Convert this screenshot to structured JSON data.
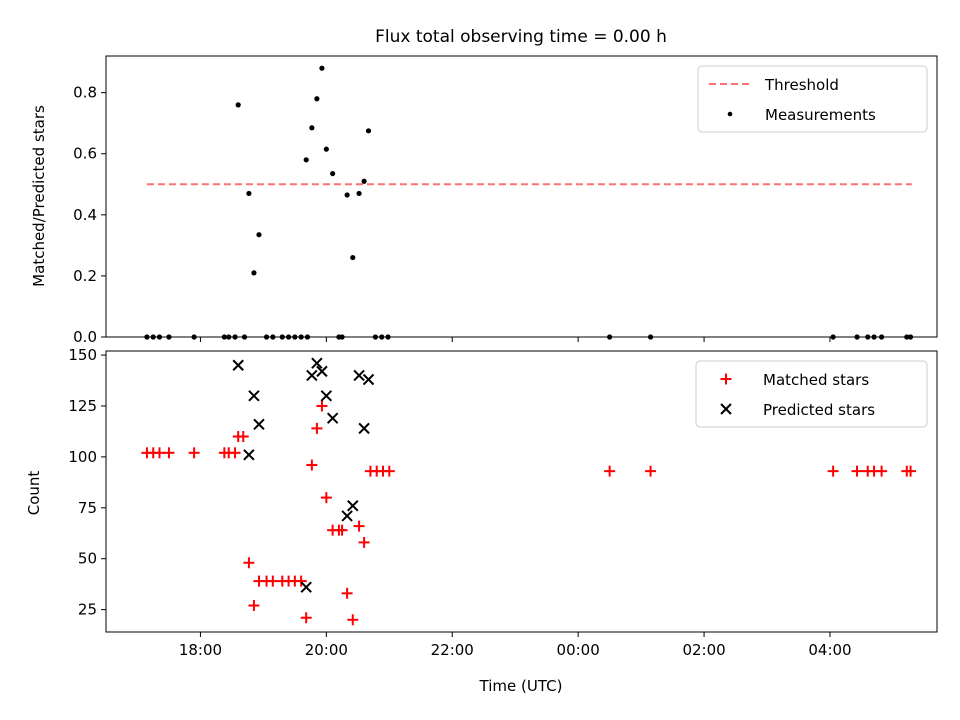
{
  "figure": {
    "title": "Flux total observing time = 0.00 h",
    "xlabel": "Time (UTC)",
    "x_tick_labels": [
      "18:00",
      "20:00",
      "22:00",
      "00:00",
      "02:00",
      "04:00"
    ]
  },
  "chart_data": [
    {
      "type": "scatter",
      "panel": "top",
      "title": "Flux total observing time = 0.00 h",
      "ylabel": "Matched/Predicted stars",
      "xlabel": "",
      "x_unit": "hours since 00:00 UTC of first day",
      "xlim": [
        16.5,
        29.7
      ],
      "ylim": [
        0,
        0.92
      ],
      "yticks": [
        0.0,
        0.2,
        0.4,
        0.6,
        0.8
      ],
      "ytick_labels": [
        "0.0",
        "0.2",
        "0.4",
        "0.6",
        "0.8"
      ],
      "grid": false,
      "legend_position": "top-right",
      "threshold": {
        "name": "Threshold",
        "value": 0.5,
        "x_from": 17.15,
        "x_to": 29.3,
        "color": "#ff7070",
        "style": "dashed"
      },
      "series": [
        {
          "name": "Measurements",
          "color": "#000000",
          "marker": "dot",
          "points": [
            [
              17.15,
              0
            ],
            [
              17.25,
              0
            ],
            [
              17.35,
              0
            ],
            [
              17.5,
              0
            ],
            [
              17.9,
              0
            ],
            [
              18.38,
              0
            ],
            [
              18.45,
              0
            ],
            [
              18.55,
              0
            ],
            [
              18.7,
              0
            ],
            [
              18.6,
              0.76
            ],
            [
              18.77,
              0.47
            ],
            [
              18.85,
              0.21
            ],
            [
              18.93,
              0.335
            ],
            [
              19.05,
              0
            ],
            [
              19.15,
              0
            ],
            [
              19.3,
              0
            ],
            [
              19.4,
              0
            ],
            [
              19.5,
              0
            ],
            [
              19.6,
              0
            ],
            [
              19.7,
              0
            ],
            [
              19.68,
              0.58
            ],
            [
              19.77,
              0.685
            ],
            [
              19.85,
              0.78
            ],
            [
              19.93,
              0.88
            ],
            [
              20.0,
              0.615
            ],
            [
              20.1,
              0.535
            ],
            [
              20.2,
              0
            ],
            [
              20.25,
              0
            ],
            [
              20.33,
              0.465
            ],
            [
              20.42,
              0.26
            ],
            [
              20.52,
              0.47
            ],
            [
              20.6,
              0.51
            ],
            [
              20.67,
              0.675
            ],
            [
              20.78,
              0
            ],
            [
              20.88,
              0
            ],
            [
              20.98,
              0
            ],
            [
              24.5,
              0
            ],
            [
              25.15,
              0
            ],
            [
              28.05,
              0
            ],
            [
              28.43,
              0
            ],
            [
              28.6,
              0
            ],
            [
              28.7,
              0
            ],
            [
              28.82,
              0
            ],
            [
              29.22,
              0
            ],
            [
              29.28,
              0
            ]
          ]
        }
      ]
    },
    {
      "type": "scatter",
      "panel": "bottom",
      "title": "",
      "ylabel": "Count",
      "xlabel": "Time (UTC)",
      "x_unit": "hours since 00:00 UTC of first day",
      "xlim": [
        16.5,
        29.7
      ],
      "ylim": [
        14,
        152
      ],
      "yticks": [
        25,
        50,
        75,
        100,
        125,
        150
      ],
      "ytick_labels": [
        "25",
        "50",
        "75",
        "100",
        "125",
        "150"
      ],
      "xticks": [
        18,
        20,
        22,
        24,
        26,
        28
      ],
      "xtick_labels": [
        "18:00",
        "20:00",
        "22:00",
        "00:00",
        "02:00",
        "04:00"
      ],
      "grid": false,
      "legend_position": "top-right",
      "series": [
        {
          "name": "Matched stars",
          "color": "#ff0000",
          "marker": "plus",
          "points": [
            [
              17.15,
              102
            ],
            [
              17.25,
              102
            ],
            [
              17.35,
              102
            ],
            [
              17.5,
              102
            ],
            [
              17.9,
              102
            ],
            [
              18.38,
              102
            ],
            [
              18.45,
              102
            ],
            [
              18.55,
              102
            ],
            [
              18.6,
              110
            ],
            [
              18.68,
              110
            ],
            [
              18.77,
              48
            ],
            [
              18.85,
              27
            ],
            [
              18.93,
              39
            ],
            [
              19.05,
              39
            ],
            [
              19.15,
              39
            ],
            [
              19.3,
              39
            ],
            [
              19.4,
              39
            ],
            [
              19.5,
              39
            ],
            [
              19.6,
              39
            ],
            [
              19.68,
              21
            ],
            [
              19.77,
              96
            ],
            [
              19.85,
              114
            ],
            [
              19.93,
              125
            ],
            [
              20.0,
              80
            ],
            [
              20.1,
              64
            ],
            [
              20.2,
              64
            ],
            [
              20.25,
              64
            ],
            [
              20.33,
              33
            ],
            [
              20.42,
              20
            ],
            [
              20.52,
              66
            ],
            [
              20.6,
              58
            ],
            [
              20.7,
              93
            ],
            [
              20.8,
              93
            ],
            [
              20.9,
              93
            ],
            [
              21.0,
              93
            ],
            [
              24.5,
              93
            ],
            [
              25.15,
              93
            ],
            [
              28.05,
              93
            ],
            [
              28.43,
              93
            ],
            [
              28.6,
              93
            ],
            [
              28.7,
              93
            ],
            [
              28.82,
              93
            ],
            [
              29.22,
              93
            ],
            [
              29.28,
              93
            ]
          ]
        },
        {
          "name": "Predicted stars",
          "color": "#000000",
          "marker": "x",
          "points": [
            [
              18.6,
              145
            ],
            [
              18.77,
              101
            ],
            [
              18.85,
              130
            ],
            [
              18.93,
              116
            ],
            [
              19.68,
              36
            ],
            [
              19.77,
              140
            ],
            [
              19.85,
              146
            ],
            [
              19.93,
              142
            ],
            [
              20.0,
              130
            ],
            [
              20.1,
              119
            ],
            [
              20.33,
              71
            ],
            [
              20.42,
              76
            ],
            [
              20.52,
              140
            ],
            [
              20.6,
              114
            ],
            [
              20.67,
              138
            ]
          ]
        }
      ]
    }
  ]
}
